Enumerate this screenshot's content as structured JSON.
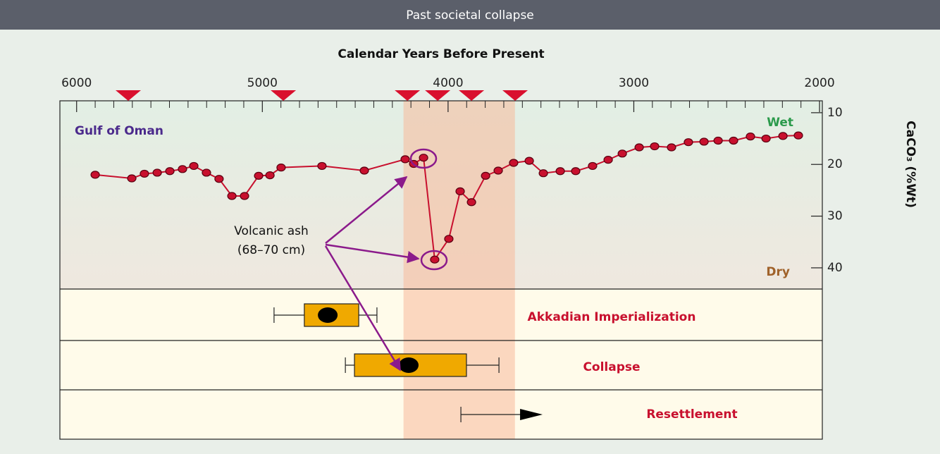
{
  "chart_data": {
    "type": "line",
    "title": "Past societal collapse",
    "xlabel": "Calendar Years Before Present",
    "ylabel": "CaCO₃ (%Wt)",
    "region_label": "Gulf of Oman",
    "wet_label": "Wet",
    "dry_label": "Dry",
    "annotation": [
      "Volcanic ash",
      "(68–70 cm)"
    ],
    "xlim": [
      6090,
      1985
    ],
    "xticks": [
      6000,
      5000,
      4000,
      3000,
      2000
    ],
    "xminor_ticks": [
      5900,
      5800,
      5700,
      5600,
      5500,
      5400,
      5300,
      5200,
      5100,
      4900,
      4800,
      4700,
      4600,
      4500,
      4400,
      4300,
      4200,
      4100,
      3900,
      3800,
      3700,
      3600,
      3500,
      3400,
      3300,
      3200,
      3100,
      2900,
      2800,
      2700,
      2600,
      2500,
      2400,
      2300,
      2200,
      2100
    ],
    "ylim": [
      7.7,
      44.1
    ],
    "yticks": [
      10,
      20,
      30,
      40
    ],
    "y_inverted": true,
    "color": "#c8102e",
    "x": [
      5900,
      5703,
      5635,
      5566,
      5498,
      5430,
      5369,
      5301,
      5233,
      5164,
      5096,
      5020,
      4959,
      4899,
      4679,
      4451,
      4231,
      4185,
      4132,
      4072,
      3996,
      3935,
      3874,
      3798,
      3730,
      3647,
      3563,
      3487,
      3396,
      3313,
      3222,
      3138,
      3062,
      2971,
      2888,
      2797,
      2706,
      2622,
      2546,
      2463,
      2372,
      2288,
      2197,
      2114
    ],
    "values": [
      22.0,
      22.7,
      21.8,
      21.6,
      21.3,
      20.9,
      20.3,
      21.6,
      22.8,
      26.1,
      26.1,
      22.2,
      22.1,
      20.6,
      20.3,
      21.2,
      19.0,
      19.9,
      18.7,
      38.4,
      34.4,
      25.2,
      27.3,
      22.2,
      21.2,
      19.7,
      19.3,
      21.7,
      21.3,
      21.3,
      20.3,
      19.1,
      17.9,
      16.7,
      16.5,
      16.7,
      15.7,
      15.6,
      15.4,
      15.4,
      14.6,
      15.0,
      14.5,
      14.4
    ],
    "event_markers": [
      5722,
      4887,
      4219,
      4056,
      3874,
      3639
    ],
    "band": [
      4240,
      3640
    ],
    "ranges": [
      {
        "label": "Akkadian Imperialization",
        "whisker": [
          4937,
          4383
        ],
        "box": [
          4774,
          4481
        ],
        "mid": 4648
      },
      {
        "label": "Collapse",
        "whisker": [
          4553,
          3726
        ],
        "box": [
          4504,
          3901
        ],
        "mid": 4212
      }
    ],
    "resettlement": {
      "label": "Resettlement",
      "start": 3931,
      "end": 3491
    }
  }
}
